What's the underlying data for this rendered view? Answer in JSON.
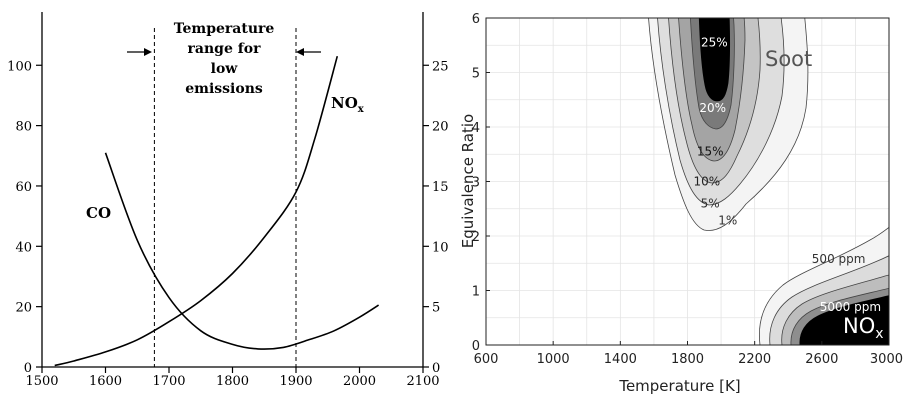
{
  "chart_data": [
    {
      "type": "line",
      "title": "",
      "xlabel": "",
      "ylabel": "",
      "xlim": [
        1500,
        2100
      ],
      "x_ticks": [
        1500,
        1600,
        1700,
        1800,
        1900,
        2000,
        2100
      ],
      "ylim_left": [
        0,
        115
      ],
      "y_left_ticks": [
        0,
        20,
        40,
        60,
        80,
        100
      ],
      "ylim_right": [
        0,
        28.75
      ],
      "y_right_ticks": [
        0,
        5,
        10,
        15,
        20,
        25
      ],
      "grid": false,
      "series": [
        {
          "name": "CO",
          "axis": "left",
          "x": [
            1600,
            1650,
            1700,
            1750,
            1800,
            1840,
            1880,
            1920,
            1960,
            2000,
            2030
          ],
          "y": [
            71,
            42,
            23,
            12,
            7.5,
            6,
            6.5,
            9,
            12,
            16.5,
            20.5
          ]
        },
        {
          "name": "NOx",
          "axis": "left",
          "x": [
            1520,
            1550,
            1600,
            1650,
            1700,
            1750,
            1800,
            1850,
            1900,
            1930,
            1965
          ],
          "y": [
            0.5,
            2,
            5,
            9,
            15,
            22,
            31,
            43,
            58,
            76,
            103
          ]
        }
      ],
      "reference_lines": [
        {
          "axis": "x",
          "value": 1677
        },
        {
          "axis": "x",
          "value": 1900
        }
      ],
      "annotations": [
        {
          "text": "Temperature range for low emissions",
          "lines": [
            "Temperature",
            "range for",
            "low",
            "emissions"
          ]
        },
        {
          "text": "CO",
          "x": 1565,
          "y": 62
        },
        {
          "text": "NO",
          "subscript": "x",
          "x": 1884,
          "y": 94
        }
      ]
    },
    {
      "type": "heatmap",
      "title": "",
      "xlabel": "Temperature [K]",
      "ylabel": "Equivalence Ratio",
      "xlim": [
        600,
        3000
      ],
      "x_ticks": [
        600,
        1000,
        1400,
        1800,
        2200,
        2600,
        3000
      ],
      "ylim": [
        0,
        6
      ],
      "y_ticks": [
        0,
        1,
        2,
        3,
        4,
        5,
        6
      ],
      "grid": true,
      "series": [
        {
          "name": "Soot",
          "contour_levels": [
            "1%",
            "5%",
            "10%",
            "15%",
            "20%",
            "25%"
          ],
          "label_positions": [
            {
              "text": "1%",
              "x": 2040,
              "y": 2.28
            },
            {
              "text": "5%",
              "x": 1935,
              "y": 2.6
            },
            {
              "text": "10%",
              "x": 1915,
              "y": 3.0
            },
            {
              "text": "15%",
              "x": 1935,
              "y": 3.55
            },
            {
              "text": "20%",
              "x": 1950,
              "y": 4.35
            },
            {
              "text": "25%",
              "x": 1960,
              "y": 5.55
            }
          ]
        },
        {
          "name": "NOx",
          "contour_levels": [
            "500 ppm",
            "5000 ppm"
          ],
          "label_positions": [
            {
              "text": "500 ppm",
              "x": 2700,
              "y": 1.58
            },
            {
              "text": "5000 ppm",
              "x": 2770,
              "y": 0.7
            }
          ]
        }
      ],
      "annotations": [
        {
          "text": "Soot",
          "x": 2330,
          "y": 5.2
        },
        {
          "text": "NO",
          "subscript": "x",
          "x": 2770,
          "y": 0.28
        }
      ]
    }
  ]
}
